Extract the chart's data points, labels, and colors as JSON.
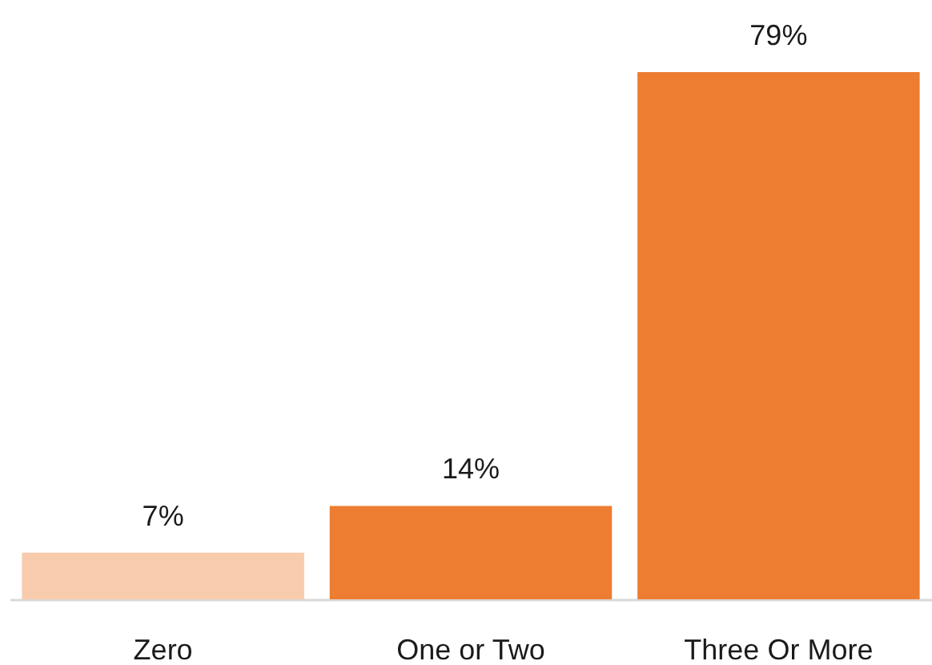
{
  "chart_data": {
    "type": "bar",
    "categories": [
      "Zero",
      "One or Two",
      "Three Or More"
    ],
    "values": [
      7,
      14,
      79
    ],
    "colors": [
      "#f8cbad",
      "#ed7d31",
      "#ed7d31"
    ],
    "value_labels": [
      "7%",
      "14%",
      "79%"
    ],
    "tick_labels": "x"
  }
}
